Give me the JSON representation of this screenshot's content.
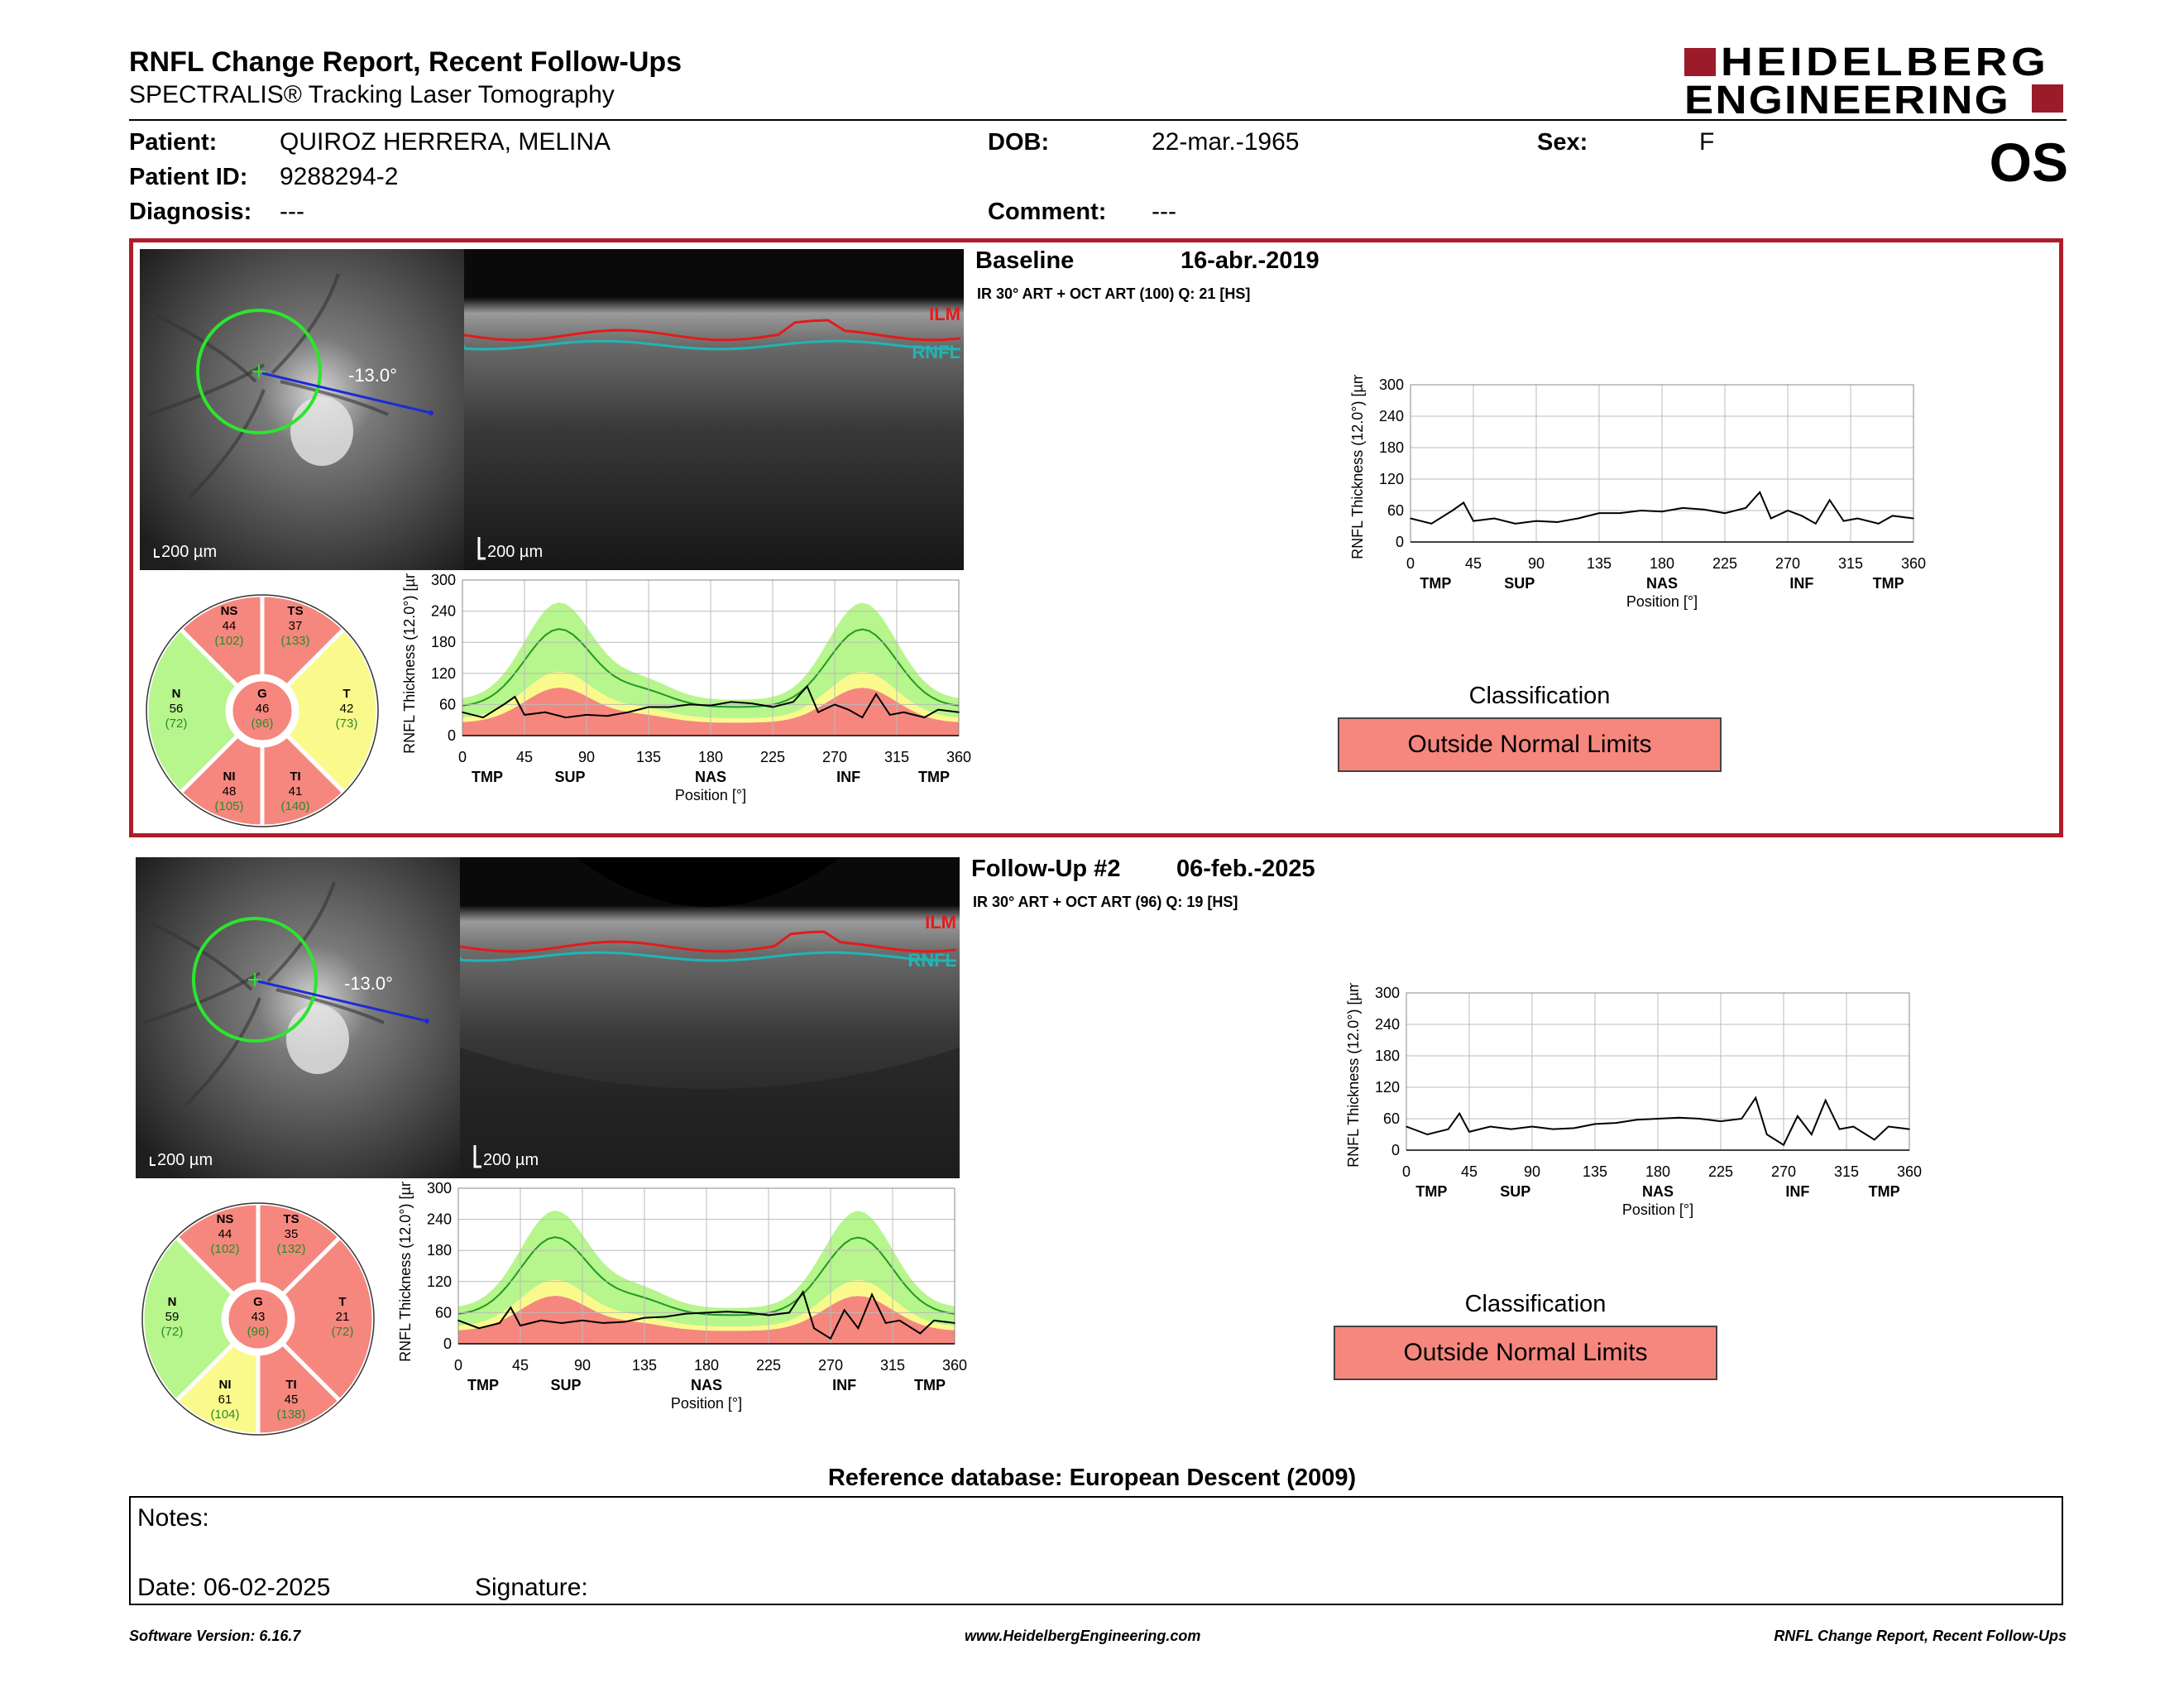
{
  "header": {
    "title": "RNFL Change Report, Recent Follow-Ups",
    "subtitle": "SPECTRALIS® Tracking Laser Tomography",
    "logo_line1": "HEIDELBERG",
    "logo_line2": "ENGINEERING",
    "eye": "OS"
  },
  "patient": {
    "patient_label": "Patient:",
    "patient_value": "QUIROZ HERRERA, MELINA",
    "id_label": "Patient ID:",
    "id_value": "9288294-2",
    "diag_label": "Diagnosis:",
    "diag_value": "---",
    "dob_label": "DOB:",
    "dob_value": "22-mar.-1965",
    "comment_label": "Comment:",
    "comment_value": "---",
    "sex_label": "Sex:",
    "sex_value": "F"
  },
  "common": {
    "scale_label": "200 µm",
    "angle_label": "-13.0°",
    "ilm_label": "ILM",
    "rnfl_label": "RNFL",
    "y_axis_label": "RNFL Thickness (12.0°) [µm]",
    "x_axis_label": "Position [°]",
    "x_ticks": [
      "0",
      "45",
      "90",
      "135",
      "180",
      "225",
      "270",
      "315",
      "360"
    ],
    "y_ticks": [
      "0",
      "60",
      "120",
      "180",
      "240",
      "300"
    ],
    "regions": [
      "TMP",
      "SUP",
      "NAS",
      "INF",
      "TMP"
    ],
    "classification_label": "Classification"
  },
  "baseline": {
    "title": "Baseline",
    "date": "16-abr.-2019",
    "protocol": "IR 30° ART + OCT ART (100) Q: 21 [HS]",
    "classification": "Outside Normal Limits",
    "sectors": {
      "NS": {
        "label": "NS",
        "value": "44",
        "ref": "(102)"
      },
      "TS": {
        "label": "TS",
        "value": "37",
        "ref": "(133)"
      },
      "N": {
        "label": "N",
        "value": "56",
        "ref": "(72)"
      },
      "G": {
        "label": "G",
        "value": "46",
        "ref": "(96)"
      },
      "T": {
        "label": "T",
        "value": "42",
        "ref": "(73)"
      },
      "NI": {
        "label": "NI",
        "value": "48",
        "ref": "(105)"
      },
      "TI": {
        "label": "TI",
        "value": "41",
        "ref": "(140)"
      }
    }
  },
  "followup": {
    "title": "Follow-Up #2",
    "date": "06-feb.-2025",
    "protocol": "IR 30° ART + OCT ART (96) Q: 19 [HS]",
    "classification": "Outside Normal Limits",
    "sectors": {
      "NS": {
        "label": "NS",
        "value": "44",
        "ref": "(102)"
      },
      "TS": {
        "label": "TS",
        "value": "35",
        "ref": "(132)"
      },
      "N": {
        "label": "N",
        "value": "59",
        "ref": "(72)"
      },
      "G": {
        "label": "G",
        "value": "43",
        "ref": "(96)"
      },
      "T": {
        "label": "T",
        "value": "21",
        "ref": "(72)"
      },
      "NI": {
        "label": "NI",
        "value": "61",
        "ref": "(104)"
      },
      "TI": {
        "label": "TI",
        "value": "45",
        "ref": "(138)"
      }
    }
  },
  "colors": {
    "border_red": "#b01c2a",
    "outside": "#f5877e",
    "borderline": "#fafa8c",
    "normal": "#b7f58d",
    "normal_line": "#1f9a1f"
  },
  "chart_data": [
    {
      "type": "line",
      "title": "",
      "xlabel": "Position [°]",
      "ylabel": "RNFL Thickness (12.0°) [µm]",
      "xlim": [
        0,
        360
      ],
      "ylim": [
        0,
        300
      ],
      "x": [
        0,
        15,
        30,
        38,
        45,
        60,
        75,
        90,
        105,
        120,
        135,
        150,
        165,
        180,
        195,
        210,
        225,
        240,
        250,
        258,
        270,
        280,
        290,
        300,
        310,
        320,
        335,
        345,
        360
      ],
      "series": [
        {
          "values": [
            45,
            35,
            60,
            75,
            40,
            45,
            35,
            40,
            38,
            45,
            55,
            55,
            60,
            58,
            65,
            62,
            55,
            65,
            95,
            45,
            60,
            50,
            35,
            80,
            40,
            45,
            35,
            50,
            45
          ]
        }
      ]
    },
    {
      "type": "line",
      "title": "",
      "xlabel": "Position [°]",
      "ylabel": "RNFL Thickness (12.0°) [µm]",
      "xlim": [
        0,
        360
      ],
      "ylim": [
        0,
        300
      ],
      "x": [
        0,
        15,
        30,
        38,
        45,
        60,
        75,
        90,
        105,
        120,
        135,
        150,
        165,
        180,
        195,
        210,
        225,
        240,
        250,
        258,
        270,
        280,
        290,
        300,
        310,
        320,
        335,
        345,
        360
      ],
      "series": [
        {
          "values": [
            45,
            30,
            40,
            70,
            35,
            45,
            40,
            45,
            40,
            42,
            50,
            52,
            58,
            60,
            62,
            60,
            55,
            60,
            100,
            30,
            10,
            65,
            30,
            95,
            40,
            45,
            20,
            45,
            40
          ]
        }
      ]
    },
    {
      "type": "line",
      "title": "",
      "xlabel": "Position [°]",
      "ylabel": "RNFL Thickness (12.0°) [µm]",
      "xlim": [
        0,
        360
      ],
      "ylim": [
        0,
        300
      ],
      "x": [
        0,
        15,
        30,
        38,
        45,
        60,
        75,
        90,
        105,
        120,
        135,
        150,
        165,
        180,
        195,
        210,
        225,
        240,
        250,
        258,
        270,
        280,
        290,
        300,
        310,
        320,
        335,
        345,
        360
      ],
      "series": [
        {
          "values": [
            45,
            35,
            60,
            75,
            40,
            45,
            35,
            40,
            38,
            45,
            55,
            55,
            60,
            58,
            65,
            62,
            55,
            65,
            95,
            45,
            60,
            50,
            35,
            80,
            40,
            45,
            35,
            50,
            45
          ]
        }
      ]
    },
    {
      "type": "line",
      "title": "",
      "xlabel": "Position [°]",
      "ylabel": "RNFL Thickness (12.0°) [µm]",
      "xlim": [
        0,
        360
      ],
      "ylim": [
        0,
        300
      ],
      "x": [
        0,
        15,
        30,
        38,
        45,
        60,
        75,
        90,
        105,
        120,
        135,
        150,
        165,
        180,
        195,
        210,
        225,
        240,
        250,
        258,
        270,
        280,
        290,
        300,
        310,
        320,
        335,
        345,
        360
      ],
      "series": [
        {
          "values": [
            45,
            30,
            40,
            70,
            35,
            45,
            40,
            45,
            40,
            42,
            50,
            52,
            58,
            60,
            62,
            60,
            55,
            60,
            100,
            30,
            10,
            65,
            30,
            95,
            40,
            45,
            20,
            45,
            40
          ]
        }
      ]
    }
  ],
  "reference": "Reference database: European Descent (2009)",
  "notes": {
    "notes_label": "Notes:",
    "date_label": "Date: 06-02-2025",
    "signature_label": "Signature:"
  },
  "footer": {
    "version": "Software Version: 6.16.7",
    "website": "www.HeidelbergEngineering.com",
    "report": "RNFL Change Report, Recent Follow-Ups"
  }
}
